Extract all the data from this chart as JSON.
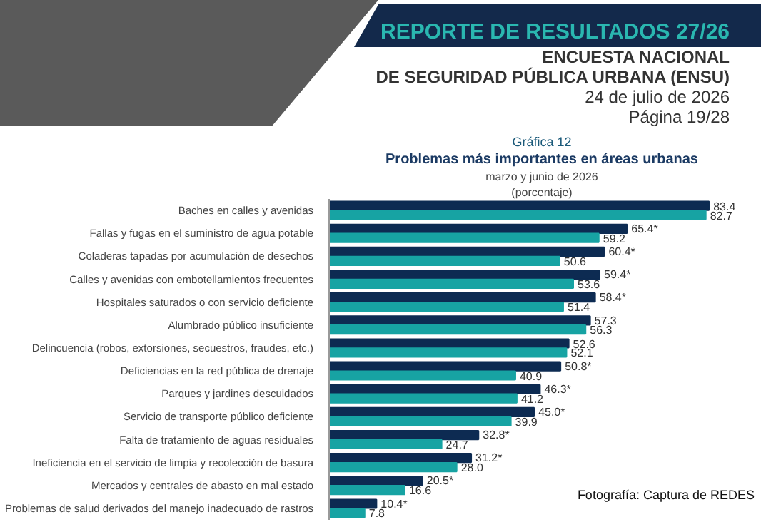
{
  "chart_data": {
    "type": "bar",
    "orientation": "horizontal",
    "title": "Problemas más importantes en áreas urbanas",
    "subtitle": "marzo y junio de 2026",
    "annotations": [
      "REPORTE DE RESULTADOS 27/26",
      "ENCUESTA NACIONAL",
      "DE SEGURIDAD PÚBLICA URBANA (ENSU)",
      "24 de julio de 2026",
      "Página 19/28",
      "Gráfica 12",
      "(porcentaje)",
      "Fotografía: Captura de REDES"
    ],
    "categories": [
      "Baches en calles y avenidas",
      "Fallas y fugas en el suministro de agua potable",
      "Coladeras tapadas por acumulación de desechos",
      "Calles y avenidas con embotellamientos frecuentes",
      "Hospitales saturados o con servicio deficiente",
      "Alumbrado público insuficiente",
      "Delincuencia (robos, extorsiones, secuestros, fraudes, etc.)",
      "Deficiencias en la red pública de drenaje",
      "Parques y jardines descuidados",
      "Servicio de transporte público deficiente",
      "Falta de tratamiento de aguas residuales",
      "Ineficiencia en el servicio de limpia y recolección de basura",
      "Mercados y centrales de abasto en mal estado",
      "Problemas de salud derivados del manejo inadecuado de rastros"
    ],
    "series": [
      {
        "color": "#0d2b52",
        "values": [
          83.4,
          65.4,
          60.4,
          59.4,
          58.4,
          57.3,
          52.6,
          50.8,
          46.3,
          45.0,
          32.8,
          31.2,
          20.5,
          10.4
        ],
        "value_labels": [
          "83.4",
          "65.4*",
          "60.4*",
          "59.4*",
          "58.4*",
          "57.3",
          "52.6",
          "50.8*",
          "46.3*",
          "45.0*",
          "32.8*",
          "31.2*",
          "20.5*",
          "10.4*"
        ]
      },
      {
        "color": "#17a3a3",
        "values": [
          82.7,
          59.2,
          50.6,
          53.6,
          51.4,
          56.3,
          52.1,
          40.9,
          41.2,
          39.9,
          24.7,
          28.0,
          16.6,
          7.8
        ],
        "value_labels": [
          "82.7",
          "59.2",
          "50.6",
          "53.6",
          "51.4",
          "56.3",
          "52.1",
          "40.9",
          "41.2",
          "39.9",
          "24.7",
          "28.0",
          "16.6",
          "7.8"
        ]
      }
    ]
  }
}
